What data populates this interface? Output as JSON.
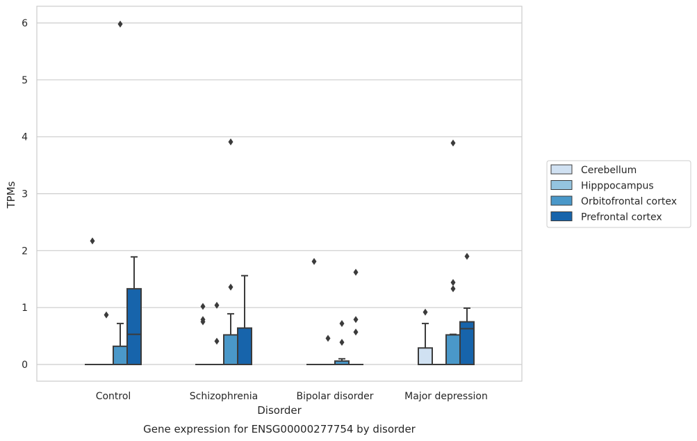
{
  "chart_data": {
    "type": "box",
    "caption": "Gene expression for ENSG00000277754 by disorder",
    "xlabel": "Disorder",
    "ylabel": "TPMs",
    "ylim": [
      -0.3,
      6.3
    ],
    "yticks": [
      0,
      1,
      2,
      3,
      4,
      5,
      6
    ],
    "grid": true,
    "legend_position": "right",
    "categories": [
      "Control",
      "Schizophrenia",
      "Bipolar disorder",
      "Major depression"
    ],
    "series": [
      {
        "name": "Cerebellum",
        "color": "#d0e1f2",
        "boxes": [
          {
            "q1": 0,
            "median": 0,
            "q3": 0,
            "whisker_low": 0,
            "whisker_high": 0,
            "outliers": [
              2.17
            ]
          },
          {
            "q1": 0,
            "median": 0,
            "q3": 0,
            "whisker_low": 0,
            "whisker_high": 0,
            "outliers": [
              1.02,
              0.79,
              0.75
            ]
          },
          {
            "q1": 0,
            "median": 0,
            "q3": 0,
            "whisker_low": 0,
            "whisker_high": 0,
            "outliers": [
              1.81
            ]
          },
          {
            "q1": 0,
            "median": 0,
            "q3": 0.29,
            "whisker_low": 0,
            "whisker_high": 0.72,
            "outliers": [
              0.92
            ]
          }
        ]
      },
      {
        "name": "Hipppocampus",
        "color": "#94c4df",
        "boxes": [
          {
            "q1": 0,
            "median": 0,
            "q3": 0,
            "whisker_low": 0,
            "whisker_high": 0,
            "outliers": [
              0.87
            ]
          },
          {
            "q1": 0,
            "median": 0,
            "q3": 0,
            "whisker_low": 0,
            "whisker_high": 0,
            "outliers": [
              1.04,
              0.41
            ]
          },
          {
            "q1": 0,
            "median": 0,
            "q3": 0,
            "whisker_low": 0,
            "whisker_high": 0,
            "outliers": [
              0.46
            ]
          },
          {
            "q1": 0,
            "median": 0,
            "q3": 0,
            "whisker_low": 0,
            "whisker_high": 0,
            "outliers": []
          }
        ]
      },
      {
        "name": "Orbitofrontal cortex",
        "color": "#4a98c9",
        "boxes": [
          {
            "q1": 0,
            "median": 0,
            "q3": 0.32,
            "whisker_low": 0,
            "whisker_high": 0.72,
            "outliers": [
              5.98
            ]
          },
          {
            "q1": 0,
            "median": 0,
            "q3": 0.52,
            "whisker_low": 0,
            "whisker_high": 0.89,
            "outliers": [
              3.91,
              1.36
            ]
          },
          {
            "q1": 0,
            "median": 0,
            "q3": 0.06,
            "whisker_low": 0,
            "whisker_high": 0.1,
            "outliers": [
              0.72,
              0.39
            ]
          },
          {
            "q1": 0,
            "median": 0,
            "q3": 0.52,
            "whisker_low": 0,
            "whisker_high": 0.53,
            "outliers": [
              3.89,
              1.44,
              1.33
            ]
          }
        ]
      },
      {
        "name": "Prefrontal cortex",
        "color": "#1764ab",
        "boxes": [
          {
            "q1": 0,
            "median": 0.53,
            "q3": 1.33,
            "whisker_low": 0,
            "whisker_high": 1.89,
            "outliers": []
          },
          {
            "q1": 0,
            "median": 0,
            "q3": 0.64,
            "whisker_low": 0,
            "whisker_high": 1.56,
            "outliers": []
          },
          {
            "q1": 0,
            "median": 0,
            "q3": 0,
            "whisker_low": 0,
            "whisker_high": 0,
            "outliers": [
              1.62,
              0.79,
              0.57
            ]
          },
          {
            "q1": 0,
            "median": 0.63,
            "q3": 0.75,
            "whisker_low": 0,
            "whisker_high": 0.99,
            "outliers": [
              1.9
            ]
          }
        ]
      }
    ]
  }
}
